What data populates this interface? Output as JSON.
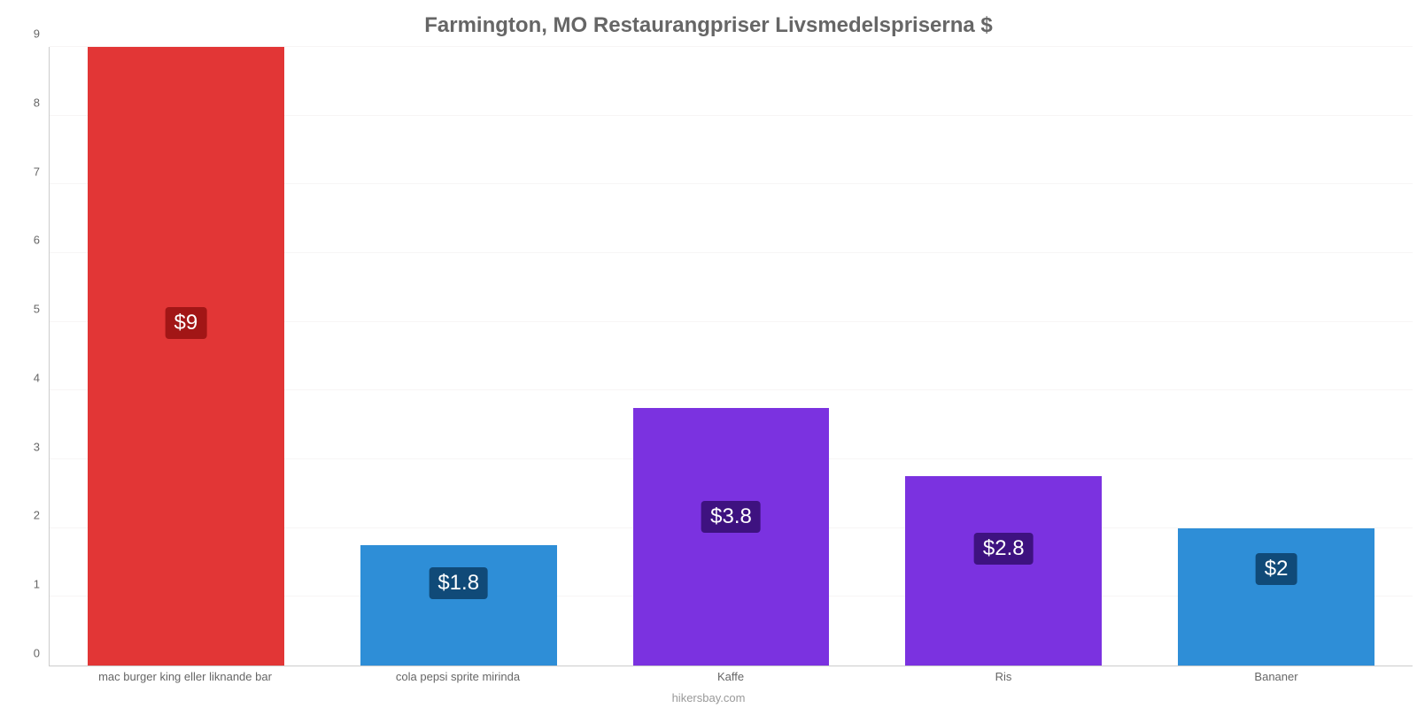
{
  "chart": {
    "type": "bar",
    "title": "Farmington, MO Restaurangpriser Livsmedelspriserna $",
    "title_fontsize": 24,
    "title_color": "#666666",
    "background_color": "#ffffff",
    "grid_color": "#f7f5f5",
    "axis_line_color": "#cccccc",
    "label_color": "#666666",
    "label_fontsize": 13,
    "ylim": [
      0,
      9
    ],
    "ytick_step": 1,
    "yticks": [
      "0",
      "1",
      "2",
      "3",
      "4",
      "5",
      "6",
      "7",
      "8",
      "9"
    ],
    "bar_width": 0.72,
    "value_label_fontsize": 24,
    "value_label_color": "#ffffff",
    "categories": [
      "mac burger king eller liknande bar",
      "cola pepsi sprite mirinda",
      "Kaffe",
      "Ris",
      "Bananer"
    ],
    "values": [
      9,
      1.75,
      3.75,
      2.75,
      2.0
    ],
    "value_labels": [
      "$9",
      "$1.8",
      "$3.8",
      "$2.8",
      "$2"
    ],
    "bar_colors": [
      "#e23636",
      "#2e8ed7",
      "#7b32e0",
      "#7b32e0",
      "#2e8ed7"
    ],
    "badge_colors": [
      "#a21616",
      "#104a78",
      "#3e1280",
      "#3e1280",
      "#104a78"
    ],
    "credit": "hikersbay.com",
    "credit_color": "#999999"
  }
}
